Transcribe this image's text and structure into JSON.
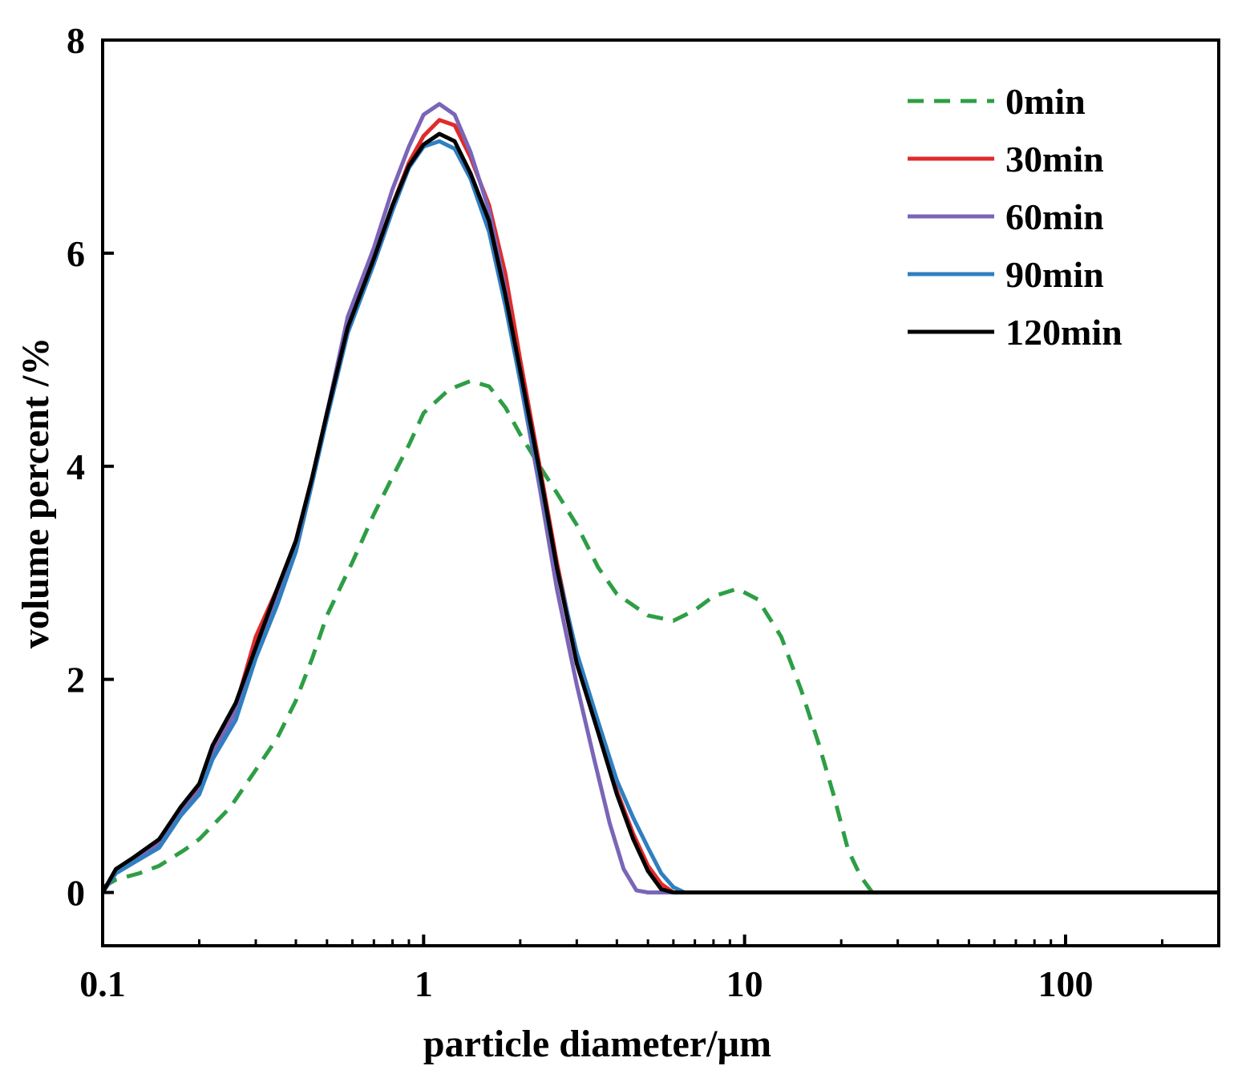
{
  "chart_data": {
    "type": "line",
    "title": "",
    "xlabel": "particle diameter/µm",
    "ylabel": "volume percent /%",
    "xscale": "log",
    "xlim": [
      0.1,
      300
    ],
    "ylim": [
      -0.5,
      8
    ],
    "xticks": [
      {
        "value": 0.1,
        "label": "0.1"
      },
      {
        "value": 1,
        "label": "1"
      },
      {
        "value": 10,
        "label": "10"
      },
      {
        "value": 100,
        "label": "100"
      }
    ],
    "yticks": [
      {
        "value": 0,
        "label": "0"
      },
      {
        "value": 2,
        "label": "2"
      },
      {
        "value": 4,
        "label": "4"
      },
      {
        "value": 6,
        "label": "6"
      },
      {
        "value": 8,
        "label": "8"
      }
    ],
    "legend_position": "top-right",
    "series": [
      {
        "name": "0min",
        "color": "#2e9e45",
        "dashed": true,
        "points": [
          [
            0.1,
            0.05
          ],
          [
            0.11,
            0.12
          ],
          [
            0.13,
            0.18
          ],
          [
            0.15,
            0.25
          ],
          [
            0.18,
            0.4
          ],
          [
            0.2,
            0.5
          ],
          [
            0.25,
            0.8
          ],
          [
            0.3,
            1.15
          ],
          [
            0.35,
            1.45
          ],
          [
            0.4,
            1.8
          ],
          [
            0.45,
            2.2
          ],
          [
            0.5,
            2.6
          ],
          [
            0.6,
            3.1
          ],
          [
            0.7,
            3.55
          ],
          [
            0.8,
            3.9
          ],
          [
            0.9,
            4.2
          ],
          [
            1.0,
            4.5
          ],
          [
            1.2,
            4.72
          ],
          [
            1.4,
            4.8
          ],
          [
            1.6,
            4.75
          ],
          [
            1.8,
            4.55
          ],
          [
            2.0,
            4.3
          ],
          [
            2.3,
            4.0
          ],
          [
            2.6,
            3.75
          ],
          [
            3.0,
            3.45
          ],
          [
            3.5,
            3.05
          ],
          [
            4.0,
            2.8
          ],
          [
            5.0,
            2.6
          ],
          [
            6.0,
            2.55
          ],
          [
            7.0,
            2.65
          ],
          [
            8.0,
            2.78
          ],
          [
            9.5,
            2.85
          ],
          [
            11,
            2.75
          ],
          [
            13,
            2.4
          ],
          [
            15,
            1.9
          ],
          [
            17,
            1.4
          ],
          [
            19,
            0.9
          ],
          [
            21,
            0.4
          ],
          [
            23,
            0.15
          ],
          [
            25,
            0.0
          ],
          [
            300,
            0.0
          ]
        ]
      },
      {
        "name": "30min",
        "color": "#e02b2b",
        "dashed": false,
        "points": [
          [
            0.1,
            0.0
          ],
          [
            0.11,
            0.22
          ],
          [
            0.125,
            0.32
          ],
          [
            0.15,
            0.48
          ],
          [
            0.175,
            0.8
          ],
          [
            0.2,
            1.0
          ],
          [
            0.22,
            1.35
          ],
          [
            0.26,
            1.75
          ],
          [
            0.3,
            2.4
          ],
          [
            0.35,
            2.85
          ],
          [
            0.4,
            3.3
          ],
          [
            0.45,
            3.9
          ],
          [
            0.5,
            4.5
          ],
          [
            0.58,
            5.3
          ],
          [
            0.7,
            5.95
          ],
          [
            0.8,
            6.45
          ],
          [
            0.9,
            6.85
          ],
          [
            1.0,
            7.1
          ],
          [
            1.12,
            7.25
          ],
          [
            1.25,
            7.2
          ],
          [
            1.4,
            6.9
          ],
          [
            1.6,
            6.45
          ],
          [
            1.8,
            5.8
          ],
          [
            2.0,
            5.0
          ],
          [
            2.3,
            4.0
          ],
          [
            2.6,
            3.1
          ],
          [
            3.0,
            2.2
          ],
          [
            3.5,
            1.55
          ],
          [
            4.0,
            0.95
          ],
          [
            4.5,
            0.55
          ],
          [
            5.0,
            0.25
          ],
          [
            5.5,
            0.08
          ],
          [
            6.0,
            0.0
          ],
          [
            300,
            0.0
          ]
        ]
      },
      {
        "name": "60min",
        "color": "#7a65b8",
        "dashed": false,
        "points": [
          [
            0.1,
            0.0
          ],
          [
            0.11,
            0.2
          ],
          [
            0.125,
            0.3
          ],
          [
            0.15,
            0.45
          ],
          [
            0.175,
            0.75
          ],
          [
            0.2,
            0.95
          ],
          [
            0.22,
            1.3
          ],
          [
            0.26,
            1.7
          ],
          [
            0.3,
            2.3
          ],
          [
            0.35,
            2.75
          ],
          [
            0.4,
            3.2
          ],
          [
            0.45,
            3.85
          ],
          [
            0.5,
            4.5
          ],
          [
            0.58,
            5.4
          ],
          [
            0.7,
            6.05
          ],
          [
            0.8,
            6.6
          ],
          [
            0.9,
            7.0
          ],
          [
            1.0,
            7.3
          ],
          [
            1.12,
            7.4
          ],
          [
            1.25,
            7.3
          ],
          [
            1.4,
            6.95
          ],
          [
            1.6,
            6.4
          ],
          [
            1.8,
            5.65
          ],
          [
            2.0,
            4.8
          ],
          [
            2.3,
            3.8
          ],
          [
            2.6,
            2.85
          ],
          [
            3.0,
            1.95
          ],
          [
            3.4,
            1.25
          ],
          [
            3.8,
            0.65
          ],
          [
            4.2,
            0.22
          ],
          [
            4.6,
            0.02
          ],
          [
            5.0,
            0.0
          ],
          [
            300,
            0.0
          ]
        ]
      },
      {
        "name": "90min",
        "color": "#2f7fc1",
        "dashed": false,
        "points": [
          [
            0.1,
            0.0
          ],
          [
            0.11,
            0.18
          ],
          [
            0.125,
            0.28
          ],
          [
            0.15,
            0.42
          ],
          [
            0.175,
            0.72
          ],
          [
            0.2,
            0.92
          ],
          [
            0.22,
            1.25
          ],
          [
            0.26,
            1.62
          ],
          [
            0.3,
            2.2
          ],
          [
            0.35,
            2.7
          ],
          [
            0.4,
            3.2
          ],
          [
            0.45,
            3.85
          ],
          [
            0.5,
            4.45
          ],
          [
            0.58,
            5.25
          ],
          [
            0.7,
            5.9
          ],
          [
            0.8,
            6.4
          ],
          [
            0.9,
            6.8
          ],
          [
            1.0,
            7.0
          ],
          [
            1.12,
            7.05
          ],
          [
            1.25,
            6.98
          ],
          [
            1.4,
            6.7
          ],
          [
            1.6,
            6.2
          ],
          [
            1.8,
            5.5
          ],
          [
            2.0,
            4.8
          ],
          [
            2.3,
            3.9
          ],
          [
            2.6,
            3.05
          ],
          [
            3.0,
            2.25
          ],
          [
            3.5,
            1.6
          ],
          [
            4.0,
            1.05
          ],
          [
            4.5,
            0.7
          ],
          [
            5.0,
            0.42
          ],
          [
            5.5,
            0.18
          ],
          [
            6.0,
            0.05
          ],
          [
            6.5,
            0.0
          ],
          [
            300,
            0.0
          ]
        ]
      },
      {
        "name": "120min",
        "color": "#000000",
        "dashed": false,
        "points": [
          [
            0.1,
            0.0
          ],
          [
            0.11,
            0.22
          ],
          [
            0.125,
            0.33
          ],
          [
            0.15,
            0.5
          ],
          [
            0.175,
            0.8
          ],
          [
            0.2,
            1.02
          ],
          [
            0.22,
            1.38
          ],
          [
            0.26,
            1.78
          ],
          [
            0.3,
            2.3
          ],
          [
            0.35,
            2.85
          ],
          [
            0.4,
            3.3
          ],
          [
            0.45,
            3.9
          ],
          [
            0.5,
            4.5
          ],
          [
            0.58,
            5.3
          ],
          [
            0.7,
            5.95
          ],
          [
            0.8,
            6.45
          ],
          [
            0.9,
            6.82
          ],
          [
            1.0,
            7.02
          ],
          [
            1.12,
            7.12
          ],
          [
            1.25,
            7.05
          ],
          [
            1.4,
            6.75
          ],
          [
            1.6,
            6.3
          ],
          [
            1.8,
            5.6
          ],
          [
            2.0,
            4.9
          ],
          [
            2.3,
            3.95
          ],
          [
            2.6,
            3.05
          ],
          [
            3.0,
            2.15
          ],
          [
            3.5,
            1.5
          ],
          [
            4.0,
            0.92
          ],
          [
            4.5,
            0.5
          ],
          [
            5.0,
            0.2
          ],
          [
            5.5,
            0.03
          ],
          [
            6.0,
            0.0
          ],
          [
            300,
            0.0
          ]
        ]
      }
    ]
  }
}
